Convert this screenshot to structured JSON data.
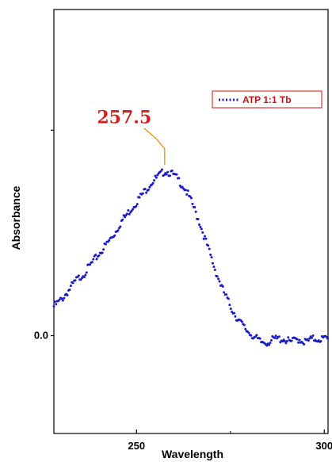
{
  "chart_data": {
    "type": "scatter",
    "title": "",
    "xlabel": "Wavelength",
    "ylabel": "Absorbance",
    "xlim": [
      228,
      301
    ],
    "ylim": [
      -0.3,
      1.0
    ],
    "xticks": [
      250,
      300
    ],
    "xtick_labels": [
      "250",
      "300"
    ],
    "yticks": [
      0.0,
      0.63
    ],
    "ytick_labels": [
      "0.0",
      ""
    ],
    "grid": false,
    "legend": {
      "position": "top-right",
      "entries": [
        "ATP 1:1 Tb"
      ]
    },
    "annotations": [
      {
        "text": "257.5",
        "x": 257.5,
        "y": 0.505
      }
    ],
    "series": [
      {
        "name": "ATP 1:1 Tb",
        "color": "#1c1cc4",
        "marker": "dot",
        "x": [
          228,
          230,
          232,
          234,
          236,
          238,
          240,
          242,
          244,
          246,
          248,
          250,
          252,
          254,
          256,
          257.5,
          259,
          261,
          263,
          265,
          267,
          269,
          271,
          273,
          275,
          277,
          279,
          281,
          283,
          285,
          287,
          289,
          291,
          293,
          295,
          297,
          299,
          301
        ],
        "y": [
          0.09,
          0.11,
          0.14,
          0.17,
          0.19,
          0.22,
          0.25,
          0.28,
          0.31,
          0.35,
          0.38,
          0.41,
          0.44,
          0.47,
          0.49,
          0.505,
          0.5,
          0.48,
          0.45,
          0.4,
          0.34,
          0.27,
          0.2,
          0.14,
          0.09,
          0.05,
          0.02,
          0.0,
          -0.02,
          -0.02,
          -0.01,
          -0.01,
          -0.02,
          -0.01,
          -0.02,
          -0.01,
          -0.01,
          -0.01
        ]
      }
    ]
  }
}
